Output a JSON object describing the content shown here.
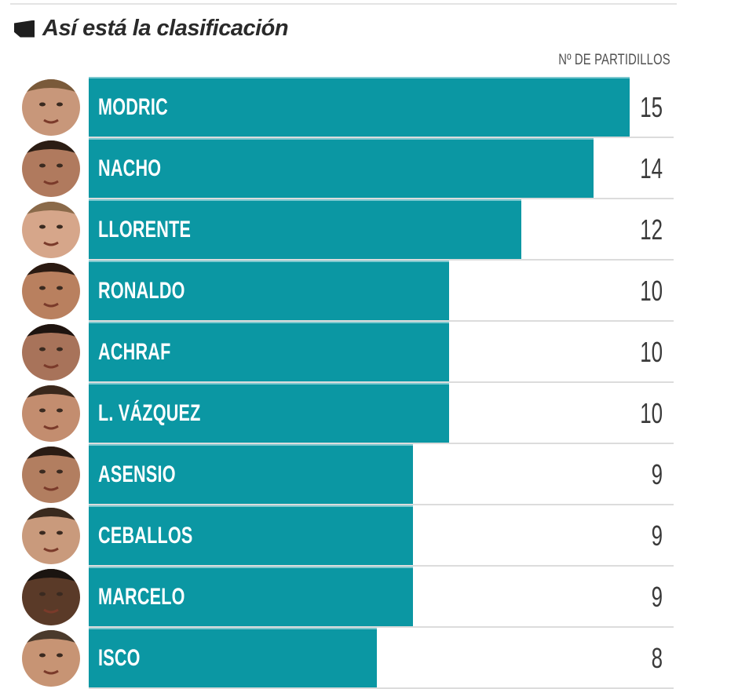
{
  "header": {
    "title": "Así está la clasificación",
    "column_label": "Nº DE PARTIDILLOS"
  },
  "colors": {
    "bar": "#0b97a3",
    "bar_highlight": "#7cc8cf",
    "label_text": "#ffffff",
    "value_text": "#3a3a3a"
  },
  "chart_data": {
    "type": "bar",
    "orientation": "horizontal",
    "title": "Así está la clasificación",
    "xlabel": "Nº DE PARTIDILLOS",
    "ylabel": "",
    "categories": [
      "MODRIC",
      "NACHO",
      "LLORENTE",
      "RONALDO",
      "ACHRAF",
      "L. VÁZQUEZ",
      "ASENSIO",
      "CEBALLOS",
      "MARCELO",
      "ISCO"
    ],
    "values": [
      15,
      14,
      12,
      10,
      10,
      10,
      9,
      9,
      9,
      8
    ],
    "xlim": [
      0,
      15
    ],
    "grid": false,
    "legend": "none"
  },
  "rows": [
    {
      "name": "MODRIC",
      "value": "15"
    },
    {
      "name": "NACHO",
      "value": "14"
    },
    {
      "name": "LLORENTE",
      "value": "12"
    },
    {
      "name": "RONALDO",
      "value": "10"
    },
    {
      "name": "ACHRAF",
      "value": "10"
    },
    {
      "name": "L. VÁZQUEZ",
      "value": "10"
    },
    {
      "name": "ASENSIO",
      "value": "9"
    },
    {
      "name": "CEBALLOS",
      "value": "9"
    },
    {
      "name": "MARCELO",
      "value": "9"
    },
    {
      "name": "ISCO",
      "value": "8"
    }
  ]
}
